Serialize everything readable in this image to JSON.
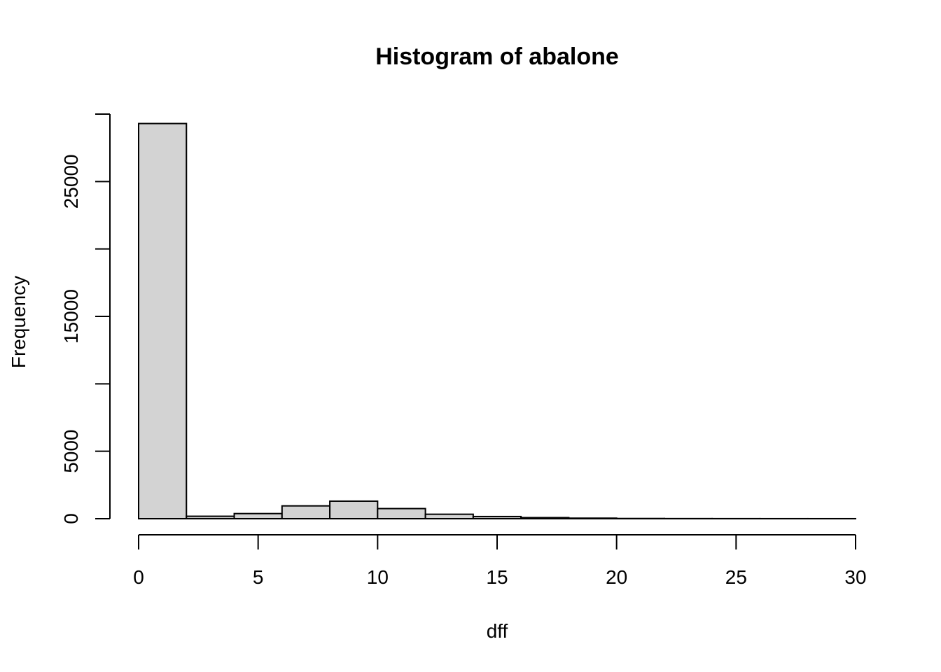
{
  "chart_data": {
    "type": "bar",
    "title": "Histogram of abalone",
    "xlabel": "dff",
    "ylabel": "Frequency",
    "bins": [
      {
        "from": 0,
        "to": 2,
        "count": 29300
      },
      {
        "from": 2,
        "to": 4,
        "count": 180
      },
      {
        "from": 4,
        "to": 6,
        "count": 380
      },
      {
        "from": 6,
        "to": 8,
        "count": 950
      },
      {
        "from": 8,
        "to": 10,
        "count": 1300
      },
      {
        "from": 10,
        "to": 12,
        "count": 750
      },
      {
        "from": 12,
        "to": 14,
        "count": 330
      },
      {
        "from": 14,
        "to": 16,
        "count": 160
      },
      {
        "from": 16,
        "to": 18,
        "count": 80
      },
      {
        "from": 18,
        "to": 20,
        "count": 40
      },
      {
        "from": 20,
        "to": 22,
        "count": 15
      },
      {
        "from": 22,
        "to": 24,
        "count": 8
      },
      {
        "from": 24,
        "to": 26,
        "count": 5
      },
      {
        "from": 26,
        "to": 28,
        "count": 3
      },
      {
        "from": 28,
        "to": 30,
        "count": 2
      }
    ],
    "xlim": [
      0,
      30
    ],
    "ylim": [
      0,
      30000
    ],
    "x_ticks": [
      0,
      5,
      10,
      15,
      20,
      25,
      30
    ],
    "y_ticks": [
      0,
      5000,
      10000,
      15000,
      20000,
      25000,
      30000
    ],
    "y_tick_labels_shown": [
      0,
      5000,
      15000,
      25000
    ],
    "grid": false,
    "legend": "none"
  }
}
